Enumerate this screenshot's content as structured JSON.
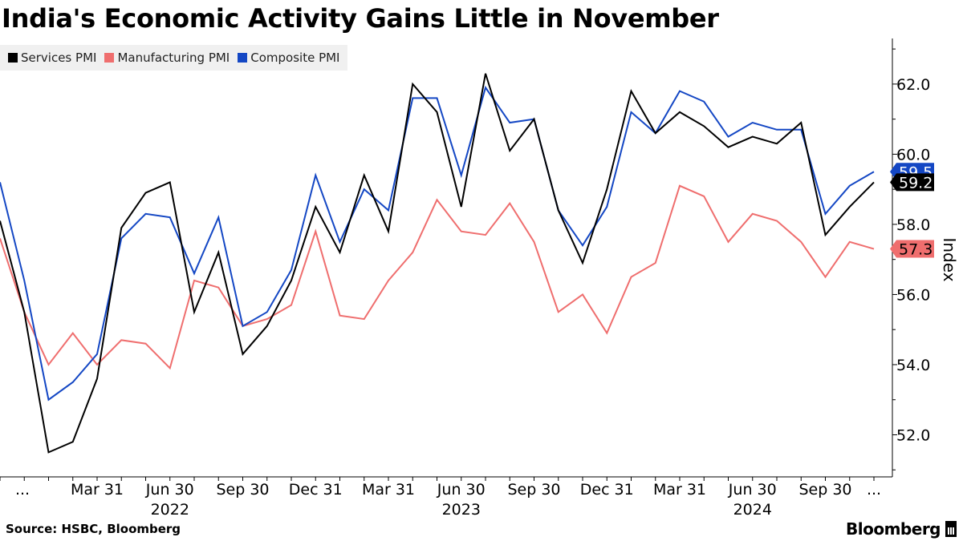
{
  "header": {
    "title": "India's Economic Activity Gains Little in November"
  },
  "legend": [
    {
      "label": "Services PMI",
      "color": "#000000"
    },
    {
      "label": "Manufacturing PMI",
      "color": "#ef6e6e"
    },
    {
      "label": "Composite PMI",
      "color": "#1447c4"
    }
  ],
  "footer": {
    "source": "Source: HSBC, Bloomberg",
    "brand": "Bloomberg"
  },
  "chart_data": {
    "type": "line",
    "title": "India's Economic Activity Gains Little in November",
    "ylabel": "Index",
    "xlabel": "",
    "ylim": [
      50.8,
      63.3
    ],
    "yticks": [
      52.0,
      54.0,
      56.0,
      58.0,
      60.0,
      62.0
    ],
    "x_start": "2021-11",
    "x": [
      "Nov 2021",
      "Dec 2021",
      "Jan 2022",
      "Feb 2022",
      "Mar 2022",
      "Apr 2022",
      "May 2022",
      "Jun 2022",
      "Jul 2022",
      "Aug 2022",
      "Sep 2022",
      "Oct 2022",
      "Nov 2022",
      "Dec 2022",
      "Jan 2023",
      "Feb 2023",
      "Mar 2023",
      "Apr 2023",
      "May 2023",
      "Jun 2023",
      "Jul 2023",
      "Aug 2023",
      "Sep 2023",
      "Oct 2023",
      "Nov 2023",
      "Dec 2023",
      "Jan 2024",
      "Feb 2024",
      "Mar 2024",
      "Apr 2024",
      "May 2024",
      "Jun 2024",
      "Jul 2024",
      "Aug 2024",
      "Sep 2024",
      "Oct 2024",
      "Nov 2024"
    ],
    "series": [
      {
        "name": "Services PMI",
        "color": "#000000",
        "values": [
          58.1,
          55.5,
          51.5,
          51.8,
          53.6,
          57.9,
          58.9,
          59.2,
          55.5,
          57.2,
          54.3,
          55.1,
          56.4,
          58.5,
          57.2,
          59.4,
          57.8,
          62.0,
          61.2,
          58.5,
          62.3,
          60.1,
          61.0,
          58.4,
          56.9,
          59.0,
          61.8,
          60.6,
          61.2,
          60.8,
          60.2,
          60.5,
          60.3,
          60.9,
          57.7,
          58.5,
          59.2
        ],
        "end_label": "59.2"
      },
      {
        "name": "Manufacturing PMI",
        "color": "#ef6e6e",
        "values": [
          57.6,
          55.5,
          54.0,
          54.9,
          54.0,
          54.7,
          54.6,
          53.9,
          56.4,
          56.2,
          55.1,
          55.3,
          55.7,
          57.8,
          55.4,
          55.3,
          56.4,
          57.2,
          58.7,
          57.8,
          57.7,
          58.6,
          57.5,
          55.5,
          56.0,
          54.9,
          56.5,
          56.9,
          59.1,
          58.8,
          57.5,
          58.3,
          58.1,
          57.5,
          56.5,
          57.5,
          57.3
        ],
        "end_label": "57.3"
      },
      {
        "name": "Composite PMI",
        "color": "#1447c4",
        "values": [
          59.2,
          56.4,
          53.0,
          53.5,
          54.3,
          57.6,
          58.3,
          58.2,
          56.6,
          58.2,
          55.1,
          55.5,
          56.7,
          59.4,
          57.5,
          59.0,
          58.4,
          61.6,
          61.6,
          59.4,
          61.9,
          60.9,
          61.0,
          58.4,
          57.4,
          58.5,
          61.2,
          60.6,
          61.8,
          61.5,
          60.5,
          60.9,
          60.7,
          60.7,
          58.3,
          59.1,
          59.5
        ],
        "end_label": "59.5"
      }
    ],
    "xtick_labels": [
      {
        "index": 0,
        "label": "..."
      },
      {
        "index": 4,
        "label": "Mar 31"
      },
      {
        "index": 7,
        "label": "Jun 30"
      },
      {
        "index": 10,
        "label": "Sep 30"
      },
      {
        "index": 13,
        "label": "Dec 31"
      },
      {
        "index": 16,
        "label": "Mar 31"
      },
      {
        "index": 19,
        "label": "Jun 30"
      },
      {
        "index": 22,
        "label": "Sep 30"
      },
      {
        "index": 25,
        "label": "Dec 31"
      },
      {
        "index": 28,
        "label": "Mar 31"
      },
      {
        "index": 31,
        "label": "Jun 30"
      },
      {
        "index": 34,
        "label": "Sep 30"
      },
      {
        "index": 36,
        "label": "..."
      }
    ],
    "year_labels": [
      {
        "index": 7,
        "label": "2022"
      },
      {
        "index": 19,
        "label": "2023"
      },
      {
        "index": 31,
        "label": "2024"
      }
    ],
    "grid": false
  }
}
